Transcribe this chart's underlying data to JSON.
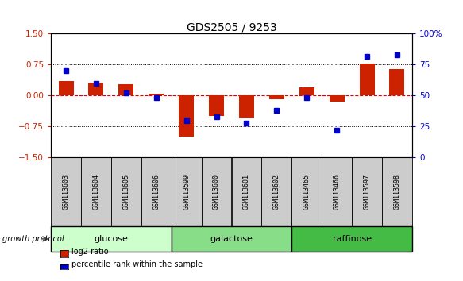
{
  "title": "GDS2505 / 9253",
  "samples": [
    "GSM113603",
    "GSM113604",
    "GSM113605",
    "GSM113606",
    "GSM113599",
    "GSM113600",
    "GSM113601",
    "GSM113602",
    "GSM113465",
    "GSM113466",
    "GSM113597",
    "GSM113598"
  ],
  "log2_ratio": [
    0.35,
    0.32,
    0.28,
    0.04,
    -1.0,
    -0.5,
    -0.55,
    -0.08,
    0.2,
    -0.15,
    0.78,
    0.65
  ],
  "percentile_rank": [
    70,
    60,
    52,
    48,
    30,
    33,
    28,
    38,
    48,
    22,
    82,
    83
  ],
  "groups": [
    {
      "label": "glucose",
      "start": 0,
      "end": 4,
      "color": "#ccffcc"
    },
    {
      "label": "galactose",
      "start": 4,
      "end": 8,
      "color": "#88dd88"
    },
    {
      "label": "raffinose",
      "start": 8,
      "end": 12,
      "color": "#44bb44"
    }
  ],
  "bar_color": "#cc2200",
  "dot_color": "#0000cc",
  "ylim": [
    -1.5,
    1.5
  ],
  "yticks_left": [
    -1.5,
    -0.75,
    0,
    0.75,
    1.5
  ],
  "yticks_right": [
    0,
    25,
    50,
    75,
    100
  ],
  "hline_y": [
    -0.75,
    0.75
  ],
  "hline_zero_color": "#dd0000",
  "hline_dotted_color": "#000000",
  "growth_protocol_label": "growth protocol",
  "legend_items": [
    "log2 ratio",
    "percentile rank within the sample"
  ],
  "bar_width": 0.5,
  "sample_label_bg": "#cccccc",
  "label_fontsize": 6.0,
  "group_fontsize": 8,
  "title_fontsize": 10
}
